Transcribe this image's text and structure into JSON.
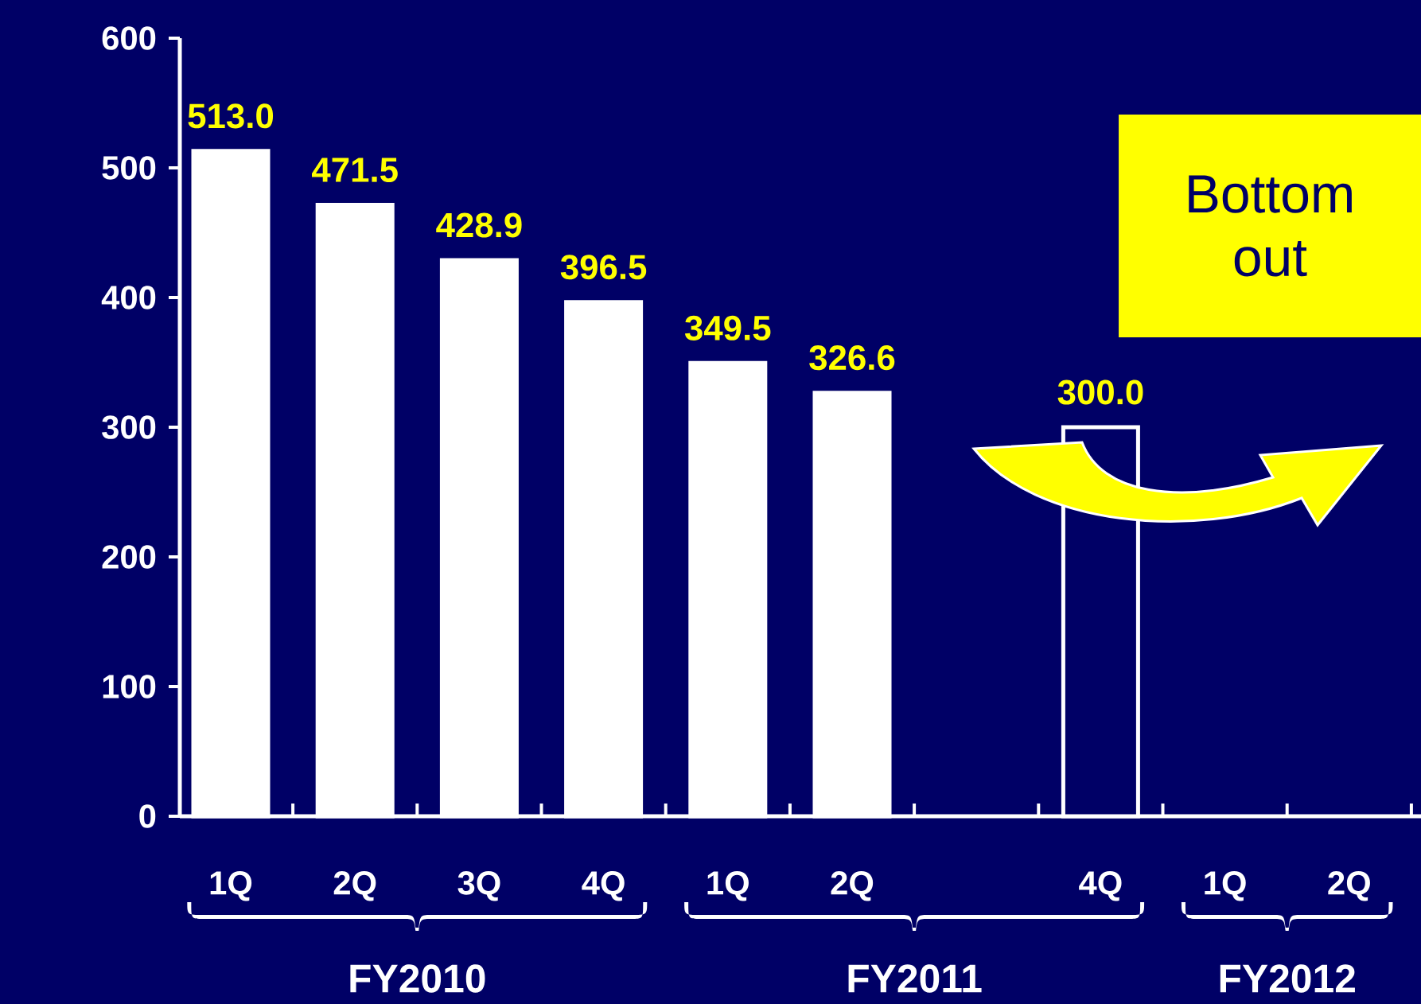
{
  "chart_data": {
    "type": "bar",
    "categories": [
      "1Q",
      "2Q",
      "3Q",
      "4Q",
      "1Q",
      "2Q",
      null,
      "4Q",
      "1Q",
      "2Q"
    ],
    "values": [
      513.0,
      471.5,
      428.9,
      396.5,
      349.5,
      326.6,
      null,
      300.0,
      null,
      null
    ],
    "value_labels": [
      "513.0",
      "471.5",
      "428.9",
      "396.5",
      "349.5",
      "326.6",
      null,
      "300.0",
      null,
      null
    ],
    "colors": [
      "#ffffff",
      "#ffffff",
      "#ffffff",
      "#ffffff",
      "#ffffff",
      "#ffffff",
      "#ffffff",
      "#000066",
      "#ffffff",
      "#ffffff"
    ],
    "ylim": [
      0,
      600
    ],
    "yticks": [
      0,
      100,
      200,
      300,
      400,
      500,
      600
    ],
    "annotations": [
      "Bottom out",
      "FY2010",
      "FY2011",
      "FY2012"
    ]
  }
}
